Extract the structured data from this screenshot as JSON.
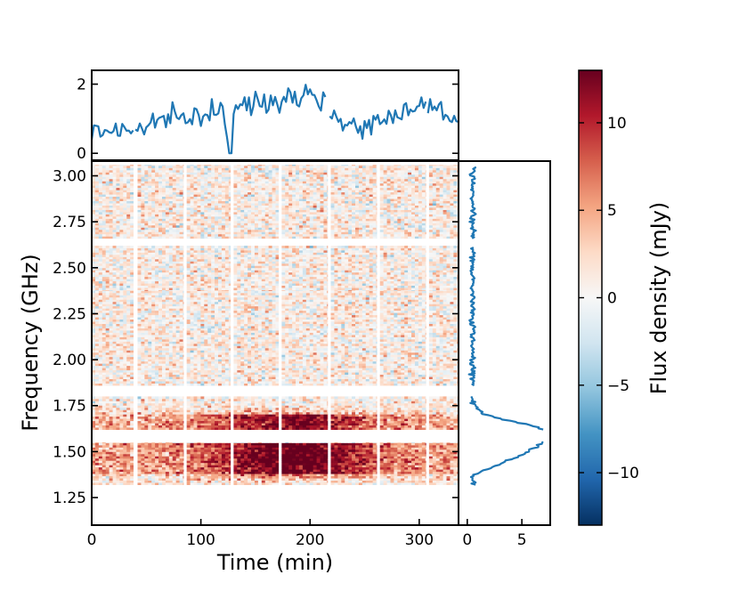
{
  "chart_data": {
    "type": "heatmap",
    "xlabel": "Time (min)",
    "ylabel": "Frequency (GHz)",
    "xlim": [
      0,
      336
    ],
    "ylim": [
      1.1,
      3.08
    ],
    "x_ticks": [
      "0",
      "100",
      "200",
      "300"
    ],
    "y_ticks": [
      "1.25",
      "1.50",
      "1.75",
      "2.00",
      "2.25",
      "2.50",
      "2.75",
      "3.00"
    ],
    "colorbar": {
      "label": "Flux density (mJy)",
      "range": [
        -13,
        13
      ],
      "ticks": [
        "−10",
        "−5",
        "0",
        "5",
        "10"
      ],
      "colormap": [
        "#053061",
        "#2166ac",
        "#4393c3",
        "#92c5de",
        "#d1e5f0",
        "#f7f7f7",
        "#fddbc7",
        "#f4a582",
        "#d6604d",
        "#b2182b",
        "#67001f"
      ]
    },
    "heatmap": {
      "time_blocks_min": [
        [
          0,
          38
        ],
        [
          42,
          84
        ],
        [
          87,
          127
        ],
        [
          130,
          171
        ],
        [
          174,
          216
        ],
        [
          219,
          261
        ],
        [
          264,
          306
        ],
        [
          309,
          336
        ]
      ],
      "frequency_bands_ghz": [
        [
          1.32,
          1.55
        ],
        [
          1.62,
          1.8
        ],
        [
          1.86,
          2.38
        ],
        [
          2.38,
          2.62
        ],
        [
          2.66,
          3.06
        ]
      ],
      "emission": {
        "description": "Strong positive emission concentrated at 1.4-1.55 GHz and 1.62-1.70 GHz",
        "peak_time_min": [
          150,
          215
        ],
        "peak_flux_mjy": 12,
        "background_flux_mjy": 1.5
      }
    },
    "top_panel": {
      "type": "line",
      "color": "#1f77b4",
      "y_ticks": [
        "0",
        "2"
      ],
      "ylim": [
        -0.2,
        2.4
      ],
      "description": "Frequency-averaged flux density vs time",
      "x": [
        0,
        20,
        40,
        60,
        80,
        100,
        120,
        125,
        130,
        150,
        170,
        190,
        200,
        210,
        215,
        220,
        230,
        240,
        260,
        280,
        300,
        320,
        336
      ],
      "y": [
        0.6,
        0.7,
        0.65,
        0.95,
        1.0,
        1.1,
        1.3,
        0.0,
        1.3,
        1.45,
        1.55,
        1.75,
        1.8,
        1.55,
        1.4,
        1.2,
        0.9,
        0.8,
        0.85,
        1.2,
        1.4,
        1.3,
        0.9
      ]
    },
    "right_panel": {
      "type": "line",
      "color": "#1f77b4",
      "x_ticks": [
        "0",
        "5"
      ],
      "xlim": [
        -0.8,
        7.6
      ],
      "description": "Time-averaged spectrum (flux density vs frequency)",
      "freq_ghz": [
        1.32,
        1.36,
        1.4,
        1.43,
        1.46,
        1.49,
        1.51,
        1.53,
        1.55,
        1.62,
        1.64,
        1.66,
        1.68,
        1.7,
        1.72,
        1.74,
        1.76,
        1.78,
        1.8,
        1.87,
        2.4,
        2.62,
        2.66,
        3.05
      ],
      "flux_mjy": [
        0.6,
        0.3,
        1.5,
        3.0,
        4.0,
        5.5,
        5.8,
        6.5,
        7.0,
        7.0,
        6.0,
        4.5,
        3.0,
        1.8,
        1.0,
        0.9,
        0.6,
        0.5,
        0.5,
        0.5,
        0.5,
        0.5,
        0.5,
        0.5
      ]
    }
  }
}
